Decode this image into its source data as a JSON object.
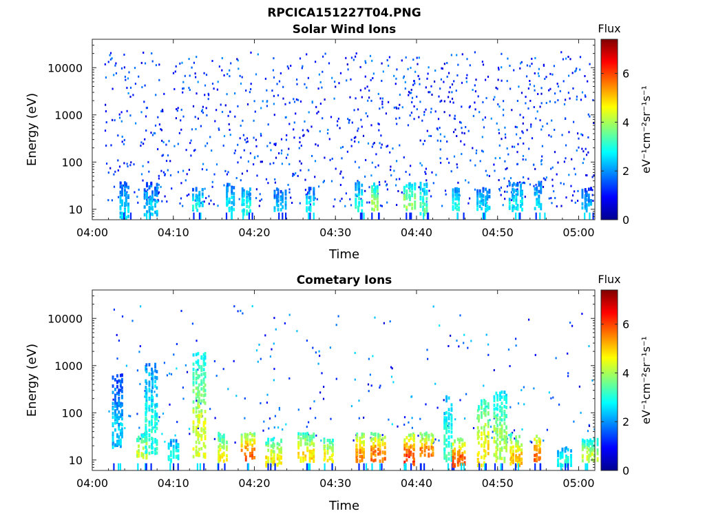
{
  "figure_title": "RPCICA151227T04.PNG",
  "chart_data": [
    {
      "type": "heatmap",
      "title": "Solar Wind Ions",
      "xlabel": "Time",
      "ylabel": "Energy (eV)",
      "x_ticks": [
        "04:00",
        "04:10",
        "04:20",
        "04:30",
        "04:40",
        "04:50",
        "05:00"
      ],
      "x_range": [
        "04:00",
        "05:02"
      ],
      "y_ticks": [
        "10",
        "100",
        "1000",
        "10000"
      ],
      "ylim": [
        6,
        40000
      ],
      "y_scale": "log",
      "colorbar": {
        "label": "Flux",
        "unit": "eV⁻¹cm⁻²sr⁻¹s⁻¹",
        "ticks": [
          "0",
          "2",
          "4",
          "6"
        ],
        "range": [
          0,
          7.4
        ],
        "colormap": "jet"
      },
      "grid": false,
      "description_of_data": "sparse scattered low-flux (1-2) pixels across all energies; moderate flux (2-4.5) bursts at 10-40 eV",
      "bursts": [
        {
          "t": "04:04",
          "e_lo": 7,
          "e_hi": 40,
          "flux": 2.5
        },
        {
          "t": "04:07",
          "e_lo": 8,
          "e_hi": 40,
          "flux": 2.4
        },
        {
          "t": "04:13",
          "e_lo": 10,
          "e_hi": 30,
          "flux": 2.8
        },
        {
          "t": "04:17",
          "e_lo": 10,
          "e_hi": 40,
          "flux": 2.5
        },
        {
          "t": "04:19",
          "e_lo": 8,
          "e_hi": 30,
          "flux": 2.9
        },
        {
          "t": "04:23",
          "e_lo": 10,
          "e_hi": 30,
          "flux": 2.2
        },
        {
          "t": "04:27",
          "e_lo": 10,
          "e_hi": 30,
          "flux": 2.6
        },
        {
          "t": "04:33",
          "e_lo": 10,
          "e_hi": 40,
          "flux": 3.0
        },
        {
          "t": "04:35",
          "e_lo": 10,
          "e_hi": 40,
          "flux": 4.0
        },
        {
          "t": "04:39",
          "e_lo": 10,
          "e_hi": 40,
          "flux": 3.8
        },
        {
          "t": "04:41",
          "e_lo": 8,
          "e_hi": 40,
          "flux": 3.3
        },
        {
          "t": "04:45",
          "e_lo": 10,
          "e_hi": 30,
          "flux": 2.8
        },
        {
          "t": "04:48",
          "e_lo": 10,
          "e_hi": 30,
          "flux": 2.5
        },
        {
          "t": "04:52",
          "e_lo": 10,
          "e_hi": 40,
          "flux": 2.7
        },
        {
          "t": "04:55",
          "e_lo": 10,
          "e_hi": 40,
          "flux": 2.6
        },
        {
          "t": "05:01",
          "e_lo": 10,
          "e_hi": 30,
          "flux": 2.2
        }
      ]
    },
    {
      "type": "heatmap",
      "title": "Cometary Ions",
      "xlabel": "Time",
      "ylabel": "Energy (eV)",
      "x_ticks": [
        "04:00",
        "04:10",
        "04:20",
        "04:30",
        "04:40",
        "04:50",
        "05:00"
      ],
      "x_range": [
        "04:00",
        "05:02"
      ],
      "y_ticks": [
        "10",
        "100",
        "1000",
        "10000"
      ],
      "ylim": [
        6,
        40000
      ],
      "y_scale": "log",
      "colorbar": {
        "label": "Flux",
        "unit": "eV⁻¹cm⁻²sr⁻¹s⁻¹",
        "ticks": [
          "0",
          "2",
          "4",
          "6"
        ],
        "range": [
          0,
          7.4
        ],
        "colormap": "jet"
      },
      "grid": false,
      "description_of_data": "high-flux bursts (4-6) at 10-40 eV, tails up to ~1000 eV, sparse scattered pixels above",
      "bursts": [
        {
          "t": "04:03",
          "e_lo": 20,
          "e_hi": 700,
          "flux": 2.3
        },
        {
          "t": "04:06",
          "e_lo": 12,
          "e_hi": 40,
          "flux": 4.2
        },
        {
          "t": "04:07",
          "e_lo": 15,
          "e_hi": 1200,
          "flux": 3.0
        },
        {
          "t": "04:10",
          "e_lo": 10,
          "e_hi": 30,
          "flux": 3.0
        },
        {
          "t": "04:13",
          "e_lo": 12,
          "e_hi": 2000,
          "flux": 4.3
        },
        {
          "t": "04:16",
          "e_lo": 10,
          "e_hi": 40,
          "flux": 4.5
        },
        {
          "t": "04:19",
          "e_lo": 10,
          "e_hi": 40,
          "flux": 5.7
        },
        {
          "t": "04:22",
          "e_lo": 8,
          "e_hi": 30,
          "flux": 4.6
        },
        {
          "t": "04:26",
          "e_lo": 10,
          "e_hi": 40,
          "flux": 4.8
        },
        {
          "t": "04:29",
          "e_lo": 10,
          "e_hi": 30,
          "flux": 4.6
        },
        {
          "t": "04:33",
          "e_lo": 10,
          "e_hi": 40,
          "flux": 5.5
        },
        {
          "t": "04:35",
          "e_lo": 10,
          "e_hi": 40,
          "flux": 5.6
        },
        {
          "t": "04:39",
          "e_lo": 8,
          "e_hi": 40,
          "flux": 6.0
        },
        {
          "t": "04:41",
          "e_lo": 12,
          "e_hi": 40,
          "flux": 5.5
        },
        {
          "t": "04:44",
          "e_lo": 10,
          "e_hi": 300,
          "flux": 3.2
        },
        {
          "t": "04:45",
          "e_lo": 8,
          "e_hi": 30,
          "flux": 5.8
        },
        {
          "t": "04:48",
          "e_lo": 8,
          "e_hi": 200,
          "flux": 4.7
        },
        {
          "t": "04:50",
          "e_lo": 10,
          "e_hi": 300,
          "flux": 4.0
        },
        {
          "t": "04:52",
          "e_lo": 8,
          "e_hi": 40,
          "flux": 5.0
        },
        {
          "t": "04:55",
          "e_lo": 10,
          "e_hi": 40,
          "flux": 5.7
        },
        {
          "t": "04:58",
          "e_lo": 8,
          "e_hi": 20,
          "flux": 3.0
        },
        {
          "t": "05:01",
          "e_lo": 10,
          "e_hi": 30,
          "flux": 4.2
        }
      ]
    }
  ]
}
